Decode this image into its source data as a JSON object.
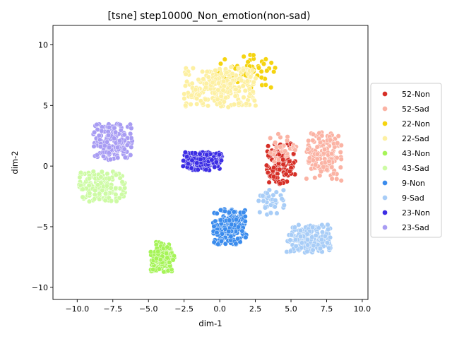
{
  "chart_data": {
    "type": "scatter",
    "title": "[tsne] step10000_Non_emotion(non-sad)",
    "xlabel": "dim-1",
    "ylabel": "dim-2",
    "xlim": [
      -11.7,
      10.4
    ],
    "ylim": [
      -11.0,
      11.6
    ],
    "xticks": [
      -10.0,
      -7.5,
      -5.0,
      -2.5,
      0.0,
      2.5,
      5.0,
      7.5,
      10.0
    ],
    "xtick_labels": [
      "−10.0",
      "−7.5",
      "−5.0",
      "−2.5",
      "0.0",
      "2.5",
      "5.0",
      "7.5",
      "10.0"
    ],
    "yticks": [
      -10,
      -5,
      0,
      5,
      10
    ],
    "ytick_labels": [
      "−10",
      "−5",
      "0",
      "5",
      "10"
    ],
    "grid": false,
    "legend_position": "right",
    "series": [
      {
        "name": "52-Non",
        "color": "#d62f27",
        "clusters": [
          {
            "center": [
              4.3,
              0.2
            ],
            "spread": [
              1.0,
              1.6
            ],
            "count": 120
          }
        ]
      },
      {
        "name": "52-Sad",
        "color": "#fbb3a4",
        "clusters": [
          {
            "center": [
              7.3,
              0.8
            ],
            "spread": [
              1.2,
              1.9
            ],
            "count": 140
          },
          {
            "center": [
              4.5,
              1.5
            ],
            "spread": [
              0.9,
              1.1
            ],
            "count": 30
          }
        ]
      },
      {
        "name": "22-Non",
        "color": "#f5d40f",
        "clusters": [
          {
            "center": [
              1.8,
              7.8
            ],
            "spread": [
              2.1,
              1.3
            ],
            "count": 60
          }
        ]
      },
      {
        "name": "22-Sad",
        "color": "#fdf0a2",
        "clusters": [
          {
            "center": [
              0.0,
              6.5
            ],
            "spread": [
              2.4,
              1.6
            ],
            "count": 240
          }
        ]
      },
      {
        "name": "43-Non",
        "color": "#a6f458",
        "clusters": [
          {
            "center": [
              -4.0,
              -7.5
            ],
            "spread": [
              0.8,
              1.2
            ],
            "count": 140
          }
        ]
      },
      {
        "name": "43-Sad",
        "color": "#cdfba4",
        "clusters": [
          {
            "center": [
              -8.3,
              -1.7
            ],
            "spread": [
              1.6,
              1.2
            ],
            "count": 160
          }
        ]
      },
      {
        "name": "9-Non",
        "color": "#3b8ced",
        "clusters": [
          {
            "center": [
              0.7,
              -5.0
            ],
            "spread": [
              1.1,
              1.4
            ],
            "count": 180
          }
        ]
      },
      {
        "name": "9-Sad",
        "color": "#a8cdf7",
        "clusters": [
          {
            "center": [
              6.2,
              -6.0
            ],
            "spread": [
              1.5,
              1.1
            ],
            "count": 180
          },
          {
            "center": [
              3.5,
              -3.0
            ],
            "spread": [
              1.0,
              1.0
            ],
            "count": 40
          }
        ]
      },
      {
        "name": "23-Non",
        "color": "#3c2de4",
        "clusters": [
          {
            "center": [
              -1.2,
              0.4
            ],
            "spread": [
              1.3,
              0.7
            ],
            "count": 220
          }
        ]
      },
      {
        "name": "23-Sad",
        "color": "#a89cf3",
        "clusters": [
          {
            "center": [
              -7.5,
              2.0
            ],
            "spread": [
              1.3,
              1.4
            ],
            "count": 170
          }
        ]
      }
    ]
  }
}
